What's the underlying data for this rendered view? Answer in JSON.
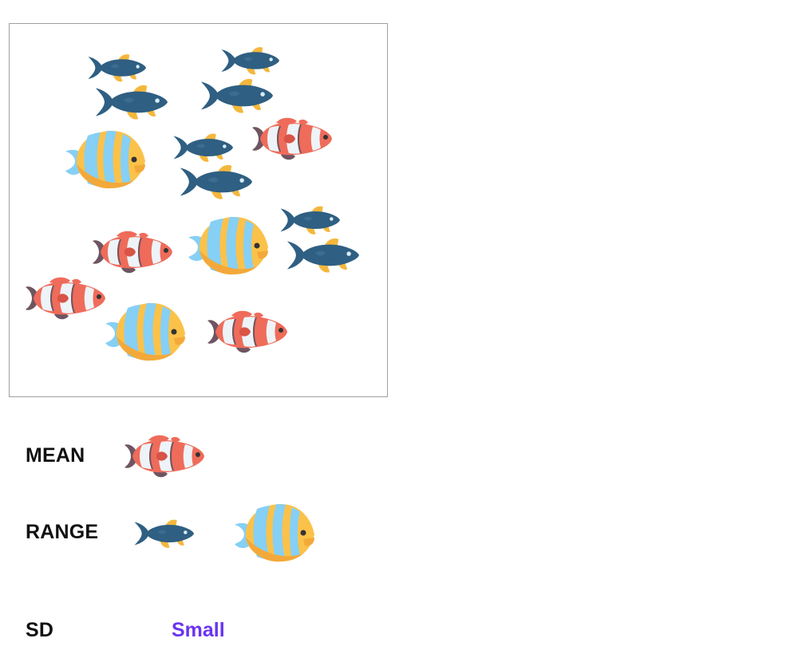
{
  "colors": {
    "blue_fish_body": "#2f5f82",
    "blue_fish_fin": "#f4b73c",
    "clown_orange": "#ef6b5a",
    "clown_white": "#eef3f7",
    "clown_dark": "#6e5561",
    "butterfly_yellow": "#fbc24a",
    "butterfly_blue": "#86cff5",
    "sd_value": "#6a35f0",
    "panel_border": "#a0a0a0"
  },
  "fish_panel": {
    "fish": [
      {
        "kind": "blue-fish"
      },
      {
        "kind": "blue-fish"
      },
      {
        "kind": "blue-fish"
      },
      {
        "kind": "blue-fish"
      },
      {
        "kind": "butterfly-fish"
      },
      {
        "kind": "blue-fish"
      },
      {
        "kind": "clownfish"
      },
      {
        "kind": "blue-fish"
      },
      {
        "kind": "blue-fish"
      },
      {
        "kind": "clownfish"
      },
      {
        "kind": "butterfly-fish"
      },
      {
        "kind": "blue-fish"
      },
      {
        "kind": "clownfish"
      },
      {
        "kind": "butterfly-fish"
      },
      {
        "kind": "clownfish"
      }
    ]
  },
  "summary": {
    "mean_label": "MEAN",
    "mean_icon": "clownfish",
    "range_label": "RANGE",
    "range_icons": [
      "blue-fish",
      "butterfly-fish"
    ],
    "sd_label": "SD",
    "sd_value": "Small"
  }
}
